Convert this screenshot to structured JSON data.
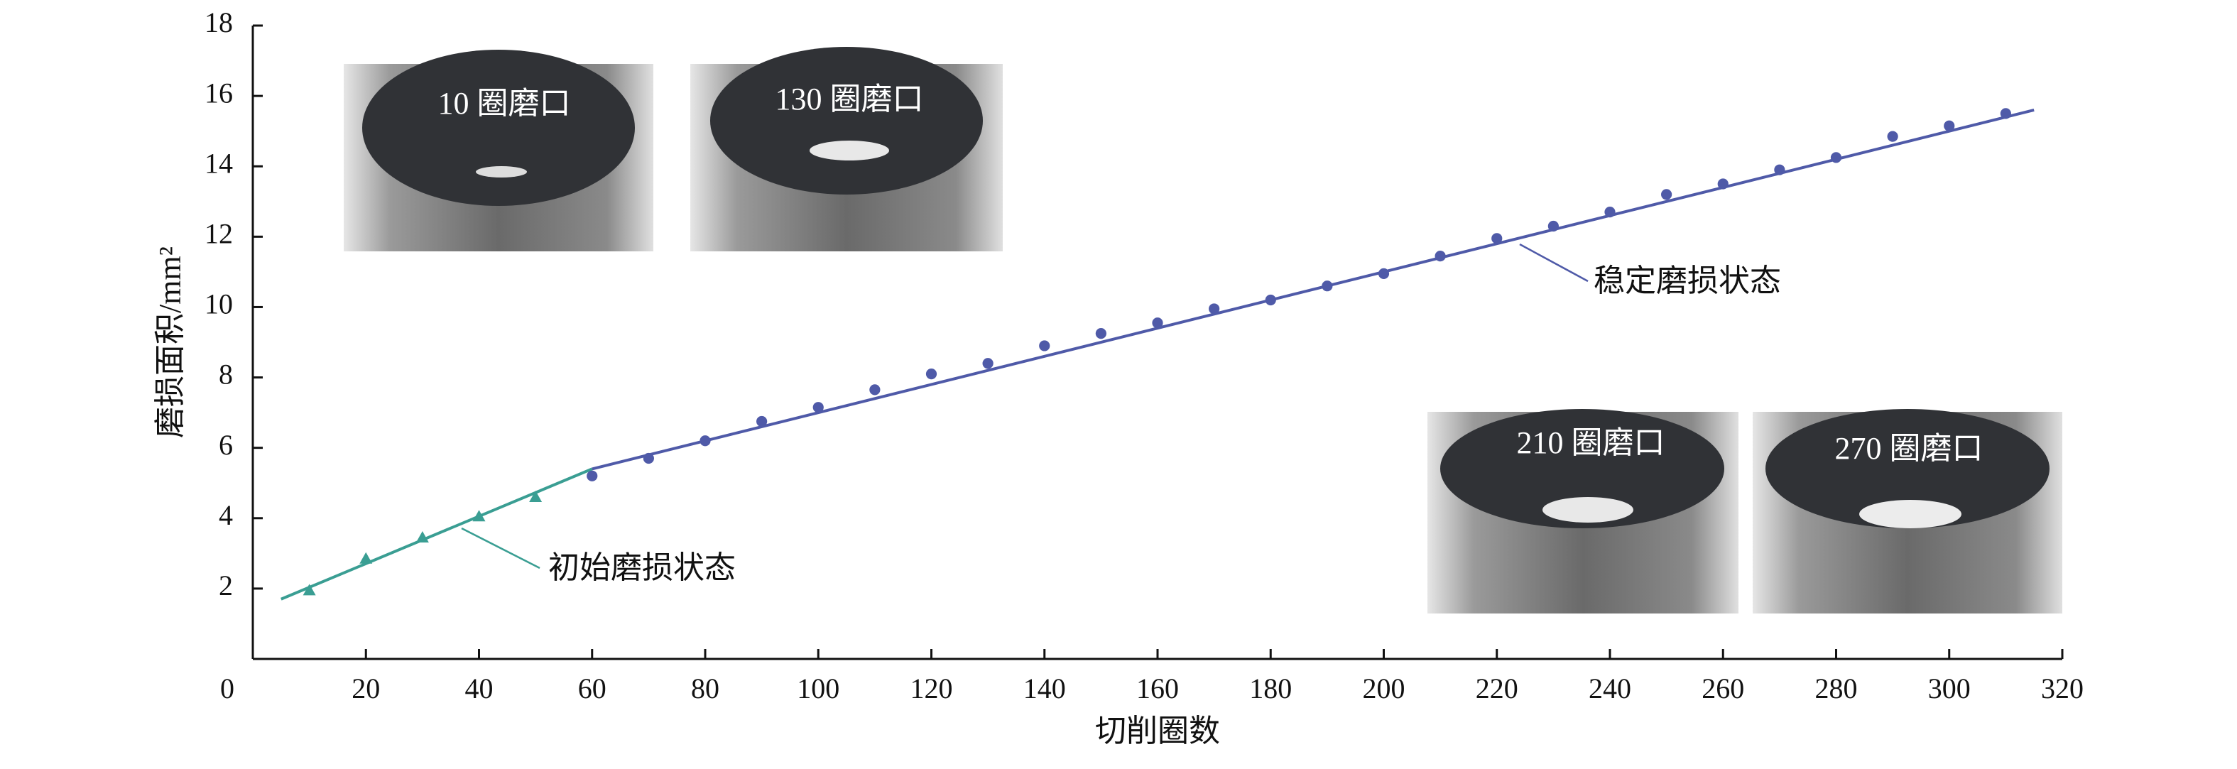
{
  "chart_data": {
    "type": "scatter",
    "x_label": "切削圈数",
    "y_label": "磨损面积/mm²",
    "xlim": [
      0,
      320
    ],
    "ylim": [
      0,
      18
    ],
    "xticks": [
      0,
      20,
      40,
      60,
      80,
      100,
      120,
      140,
      160,
      180,
      200,
      220,
      240,
      260,
      280,
      300,
      320
    ],
    "yticks": [
      2,
      4,
      6,
      8,
      10,
      12,
      14,
      16,
      18
    ],
    "series": [
      {
        "marker": "triangle",
        "color": "#3a9e93",
        "x": [
          10,
          20,
          30,
          40,
          50
        ],
        "values": [
          1.95,
          2.85,
          3.45,
          4.05,
          4.6
        ]
      },
      {
        "marker": "circle",
        "color": "#4f5aa8",
        "x": [
          60,
          70,
          80,
          90,
          100,
          110,
          120,
          130,
          140,
          150,
          160,
          170,
          180,
          190,
          200,
          210,
          220,
          230,
          240,
          250,
          260,
          270,
          280,
          290,
          300,
          310
        ],
        "values": [
          5.2,
          5.7,
          6.2,
          6.75,
          7.15,
          7.65,
          8.1,
          8.4,
          8.9,
          9.25,
          9.55,
          9.95,
          10.2,
          10.6,
          10.95,
          11.45,
          11.95,
          12.3,
          12.7,
          13.2,
          13.5,
          13.9,
          14.25,
          14.85,
          15.15,
          15.5
        ]
      }
    ],
    "fits": [
      {
        "color": "#3a9e93",
        "x": [
          5,
          60
        ],
        "values": [
          1.7,
          5.4
        ]
      },
      {
        "color": "#4f5aa8",
        "x": [
          60,
          315
        ],
        "values": [
          5.4,
          15.6
        ]
      }
    ],
    "annotations": [
      {
        "text": "初始磨损状态",
        "color": "#3a9e93"
      },
      {
        "text": "稳定磨损状态",
        "color": "#4f5aa8"
      }
    ],
    "insets": [
      "10 圈磨口",
      "130 圈磨口",
      "210 圈磨口",
      "270 圈磨口"
    ]
  }
}
